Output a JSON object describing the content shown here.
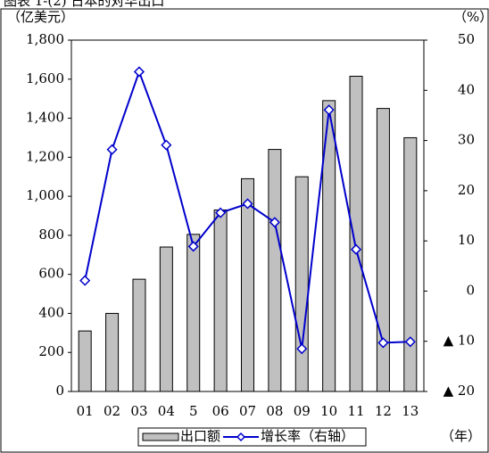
{
  "chart_data": {
    "type": "bar",
    "title": "图表 1-(2) 日本的对华出口",
    "y_label": "（亿美元）",
    "y2_label": "（%）",
    "x_label": "（年）",
    "categories": [
      "01",
      "02",
      "03",
      "04",
      "5",
      "06",
      "07",
      "08",
      "09",
      "10",
      "11",
      "12",
      "13"
    ],
    "series": [
      {
        "name": "出口额",
        "type": "bar",
        "color": "#c0c0c0",
        "values": [
          310,
          400,
          575,
          740,
          805,
          930,
          1090,
          1240,
          1100,
          1490,
          1615,
          1450,
          1300
        ]
      },
      {
        "name": "增长率（右轴）",
        "type": "line",
        "axis": "y2",
        "color": "#0000cc",
        "values": [
          2.1,
          28.2,
          43.7,
          29.1,
          8.9,
          15.6,
          17.4,
          13.7,
          -11.5,
          36.1,
          8.3,
          -10.3,
          -10.1
        ]
      }
    ],
    "ylim": [
      0,
      1800
    ],
    "yticks": [
      0,
      200,
      400,
      600,
      800,
      {
        "value": 1000,
        "label": "1,000"
      },
      {
        "value": 1200,
        "label": "1,200"
      },
      {
        "value": 1400,
        "label": "1,400"
      },
      {
        "value": 1600,
        "label": "1,600"
      },
      {
        "value": 1800,
        "label": "1,800"
      }
    ],
    "y2lim": [
      -20,
      50
    ],
    "y2ticks": [
      {
        "value": -20,
        "label": "▲ 20"
      },
      {
        "value": -10,
        "label": "▲ 10"
      },
      0,
      10,
      20,
      30,
      40,
      50
    ],
    "grid": false
  }
}
